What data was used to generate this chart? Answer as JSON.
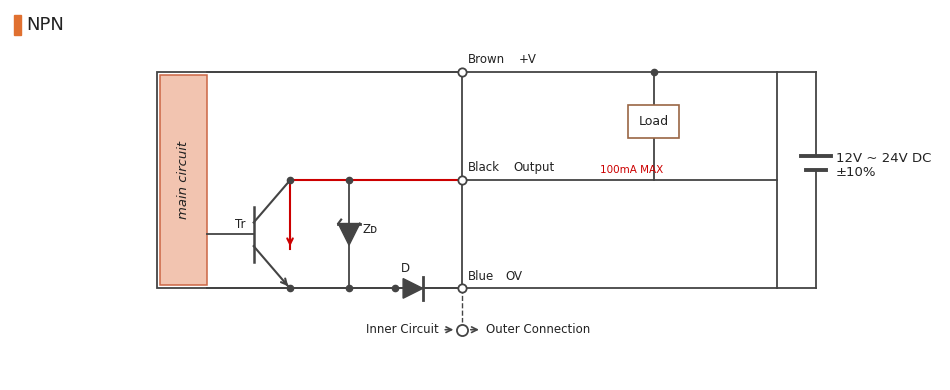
{
  "title": "NPN",
  "bg_color": "#ffffff",
  "line_color": "#444444",
  "red_color": "#cc0000",
  "main_circuit_bg": "#f2c4b0",
  "main_circuit_border": "#cc6644",
  "load_box_color": "#996644",
  "label_brown": "Brown",
  "label_pv": "+V",
  "label_black": "Black",
  "label_output": "Output",
  "label_blue": "Blue",
  "label_ov": "OV",
  "label_100ma": "100mA MAX",
  "label_load": "Load",
  "label_voltage": "12V ~ 24V DC",
  "label_voltage2": "±10%",
  "label_tr": "Tr",
  "label_zd": "Zᴅ",
  "label_d": "D",
  "label_inner": "Inner Circuit",
  "label_outer": "Outer Connection",
  "label_main": "main circuit",
  "orange_bar_color": "#E07030"
}
